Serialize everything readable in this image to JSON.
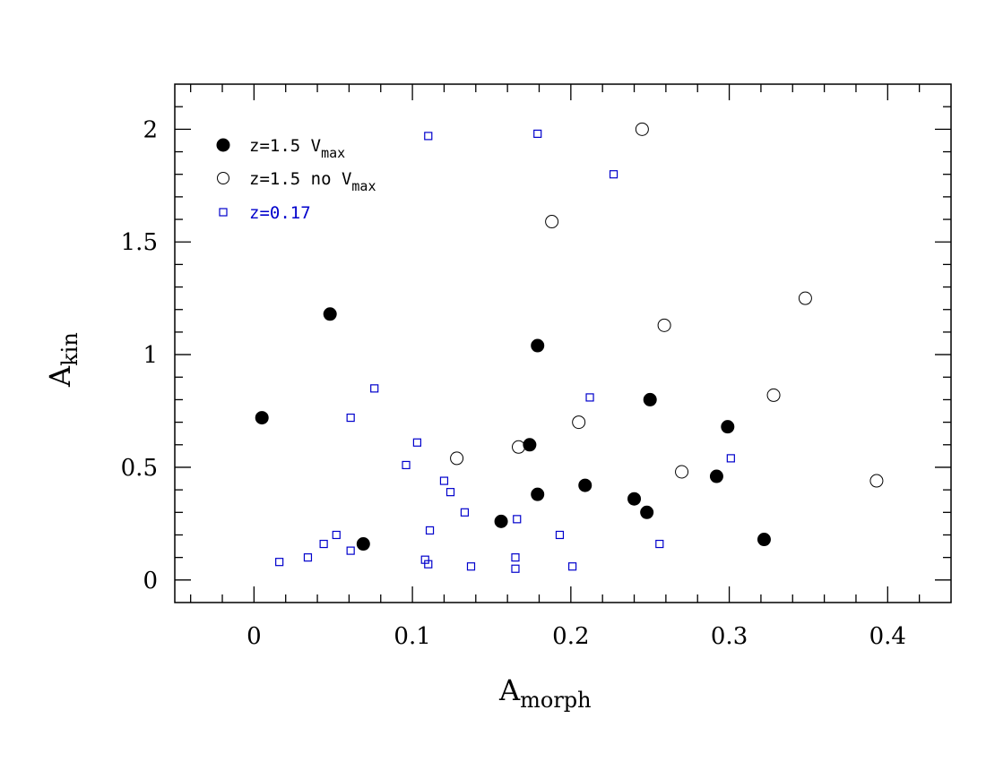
{
  "chart_data": {
    "type": "scatter",
    "x_label_main": "A",
    "x_label_sub": "morph",
    "y_label_main": "A",
    "y_label_sub": "kin",
    "xlim": [
      -0.05,
      0.44
    ],
    "ylim": [
      -0.1,
      2.2
    ],
    "x_ticks": [
      0,
      0.1,
      0.2,
      0.3,
      0.4
    ],
    "x_tick_labels": [
      "0",
      "0.1",
      "0.2",
      "0.3",
      "0.4"
    ],
    "y_ticks": [
      0,
      0.5,
      1,
      1.5,
      2
    ],
    "y_tick_labels": [
      "0",
      "0.5",
      "1",
      "1.5",
      "2"
    ],
    "x_minor_step": 0.02,
    "y_minor_step": 0.1,
    "grid": false,
    "legend_position": "top-left",
    "series": [
      {
        "name_main": "z=1.5 V",
        "name_sub": "max",
        "marker": "filled-circle",
        "color": "#000000",
        "points": [
          [
            0.005,
            0.72
          ],
          [
            0.048,
            1.18
          ],
          [
            0.069,
            0.16
          ],
          [
            0.156,
            0.26
          ],
          [
            0.174,
            0.6
          ],
          [
            0.179,
            1.04
          ],
          [
            0.179,
            0.38
          ],
          [
            0.209,
            0.42
          ],
          [
            0.24,
            0.36
          ],
          [
            0.248,
            0.3
          ],
          [
            0.25,
            0.8
          ],
          [
            0.292,
            0.46
          ],
          [
            0.299,
            0.68
          ],
          [
            0.322,
            0.18
          ]
        ]
      },
      {
        "name_main": "z=1.5 no V",
        "name_sub": "max",
        "marker": "open-circle",
        "color": "#000000",
        "points": [
          [
            0.128,
            0.54
          ],
          [
            0.167,
            0.59
          ],
          [
            0.188,
            1.59
          ],
          [
            0.205,
            0.7
          ],
          [
            0.245,
            2.0
          ],
          [
            0.259,
            1.13
          ],
          [
            0.27,
            0.48
          ],
          [
            0.328,
            0.82
          ],
          [
            0.348,
            1.25
          ],
          [
            0.393,
            0.44
          ]
        ]
      },
      {
        "name_main": "z=0.17",
        "name_sub": "",
        "marker": "open-square",
        "color": "#0000cc",
        "points": [
          [
            0.016,
            0.08
          ],
          [
            0.034,
            0.1
          ],
          [
            0.044,
            0.16
          ],
          [
            0.052,
            0.2
          ],
          [
            0.061,
            0.13
          ],
          [
            0.061,
            0.72
          ],
          [
            0.076,
            0.85
          ],
          [
            0.096,
            0.51
          ],
          [
            0.103,
            0.61
          ],
          [
            0.108,
            0.09
          ],
          [
            0.11,
            1.97
          ],
          [
            0.11,
            0.07
          ],
          [
            0.111,
            0.22
          ],
          [
            0.12,
            0.44
          ],
          [
            0.124,
            0.39
          ],
          [
            0.133,
            0.3
          ],
          [
            0.137,
            0.06
          ],
          [
            0.165,
            0.1
          ],
          [
            0.165,
            0.05
          ],
          [
            0.166,
            0.27
          ],
          [
            0.179,
            1.98
          ],
          [
            0.193,
            0.2
          ],
          [
            0.201,
            0.06
          ],
          [
            0.212,
            0.81
          ],
          [
            0.227,
            1.8
          ],
          [
            0.256,
            0.16
          ],
          [
            0.301,
            0.54
          ]
        ]
      }
    ]
  }
}
